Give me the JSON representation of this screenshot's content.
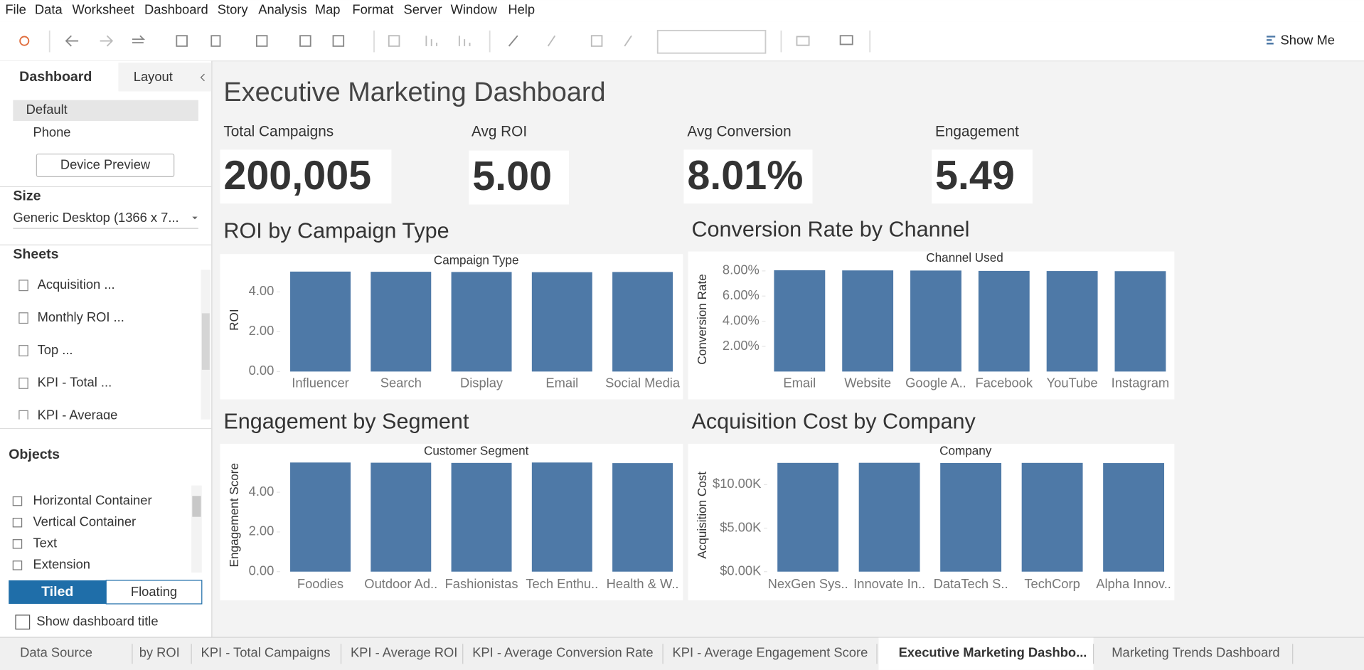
{
  "menu": [
    "File",
    "Data",
    "Worksheet",
    "Dashboard",
    "Story",
    "Analysis",
    "Map",
    "Format",
    "Server",
    "Window",
    "Help"
  ],
  "toolbar": {
    "show_me": "Show Me"
  },
  "side_panel": {
    "tabs": [
      "Dashboard",
      "Layout"
    ],
    "devices": [
      "Default",
      "Phone"
    ],
    "device_preview": "Device Preview",
    "size_heading": "Size",
    "size_value": "Generic Desktop (1366 x 7...",
    "sheets_heading": "Sheets",
    "sheets": [
      "Acquisition ...",
      "Monthly ROI ...",
      "Top ...",
      "KPI - Total ...",
      "KPI - Average"
    ],
    "objects_heading": "Objects",
    "objects": [
      "Horizontal Container",
      "Vertical Container",
      "Text",
      "Extension"
    ],
    "layout_modes": [
      "Tiled",
      "Floating"
    ],
    "show_title": "Show dashboard title"
  },
  "dashboard": {
    "title": "Executive Marketing Dashboard",
    "kpis": [
      {
        "label": "Total Campaigns",
        "value": "200,005"
      },
      {
        "label": "Avg ROI",
        "value": "5.00"
      },
      {
        "label": "Avg Conversion",
        "value": "8.01%"
      },
      {
        "label": "Engagement",
        "value": "5.49"
      }
    ],
    "charts": [
      {
        "type": "bar",
        "title": "ROI by Campaign Type",
        "x_axis_title": "Campaign Type",
        "y_axis_title": "ROI",
        "categories": [
          "Influencer",
          "Search",
          "Display",
          "Email",
          "Social Media"
        ],
        "values": [
          5.02,
          5.01,
          5.0,
          4.99,
          5.0
        ],
        "color": "#4e79a7",
        "ylim": [
          0,
          5.2
        ],
        "yticks": [
          {
            "value": 0,
            "label": "0.00"
          },
          {
            "value": 2,
            "label": "2.00"
          },
          {
            "value": 4,
            "label": "4.00"
          }
        ]
      },
      {
        "type": "bar",
        "title": "Conversion Rate by Channel",
        "x_axis_title": "Channel Used",
        "y_axis_title": "Conversion Rate",
        "categories": [
          "Email",
          "Website",
          "Google A..",
          "Facebook",
          "YouTube",
          "Instagram"
        ],
        "values": [
          8.05,
          8.04,
          8.03,
          8.0,
          7.99,
          7.98
        ],
        "color": "#4e79a7",
        "ylim": [
          0,
          8.3
        ],
        "yticks": [
          {
            "value": 2,
            "label": "2.00%"
          },
          {
            "value": 4,
            "label": "4.00%"
          },
          {
            "value": 6,
            "label": "6.00%"
          },
          {
            "value": 8,
            "label": "8.00%"
          }
        ]
      },
      {
        "type": "bar",
        "title": "Engagement by Segment",
        "x_axis_title": "Customer Segment",
        "y_axis_title": "Engagement Score",
        "categories": [
          "Foodies",
          "Outdoor Ad..",
          "Fashionistas",
          "Tech Enthu..",
          "Health & W.."
        ],
        "values": [
          5.5,
          5.49,
          5.48,
          5.5,
          5.47
        ],
        "color": "#4e79a7",
        "ylim": [
          0,
          5.7
        ],
        "yticks": [
          {
            "value": 0,
            "label": "0.00"
          },
          {
            "value": 2,
            "label": "2.00"
          },
          {
            "value": 4,
            "label": "4.00"
          }
        ]
      },
      {
        "type": "bar",
        "title": "Acquisition Cost by Company",
        "x_axis_title": "Company",
        "y_axis_title": "Acquisition Cost",
        "categories": [
          "NexGen Sys..",
          "Innovate In..",
          "DataTech S..",
          "TechCorp",
          "Alpha Innov.."
        ],
        "values": [
          12500,
          12510,
          12490,
          12500,
          12480
        ],
        "color": "#4e79a7",
        "ylim": [
          0,
          13000
        ],
        "yticks": [
          {
            "value": 0,
            "label": "$0.00K"
          },
          {
            "value": 5000,
            "label": "$5.00K"
          },
          {
            "value": 10000,
            "label": "$10.00K"
          }
        ]
      }
    ]
  },
  "sheet_tabs": [
    "Data Source",
    "by ROI",
    "KPI - Total Campaigns",
    "KPI - Average ROI",
    "KPI - Average Conversion Rate",
    "KPI - Average Engagement Score",
    "Executive Marketing Dashbo...",
    "Marketing Trends Dashboard"
  ]
}
